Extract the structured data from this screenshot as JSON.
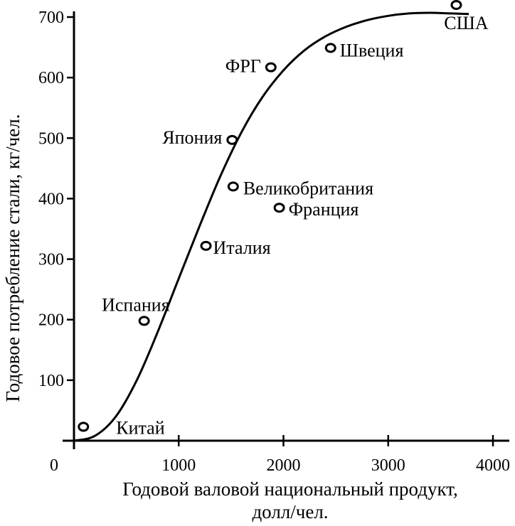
{
  "chart_data": {
    "type": "scatter",
    "xlabel_line1": "Годовой валовой национальный продукт,",
    "xlabel_line2": "долл/чел.",
    "ylabel": "Годовое потребление стали, кг/чел.",
    "xlim": [
      0,
      4000
    ],
    "ylim": [
      0,
      700
    ],
    "x_ticks": [
      0,
      1000,
      2000,
      3000,
      4000
    ],
    "y_ticks": [
      100,
      200,
      300,
      400,
      500,
      600,
      700
    ],
    "grid": false,
    "points": [
      {
        "label": "Китай",
        "x": 90,
        "y": 23
      },
      {
        "label": "Испания",
        "x": 670,
        "y": 198
      },
      {
        "label": "Италия",
        "x": 1260,
        "y": 322
      },
      {
        "label": "Великобритания",
        "x": 1520,
        "y": 420
      },
      {
        "label": "Франция",
        "x": 1960,
        "y": 385
      },
      {
        "label": "Япония",
        "x": 1510,
        "y": 497
      },
      {
        "label": "ФРГ",
        "x": 1880,
        "y": 617
      },
      {
        "label": "Швеция",
        "x": 2450,
        "y": 649
      },
      {
        "label": "США",
        "x": 3650,
        "y": 720
      }
    ],
    "trend_curve": {
      "x": [
        0,
        200,
        400,
        600,
        800,
        1000,
        1200,
        1400,
        1600,
        1800,
        2000,
        2200,
        2400,
        2600,
        2800,
        3000,
        3200,
        3400,
        3600,
        3770
      ],
      "y": [
        0,
        8,
        40,
        100,
        180,
        268,
        355,
        438,
        510,
        568,
        612,
        645,
        668,
        684,
        695,
        702,
        706,
        707,
        706,
        705
      ]
    }
  }
}
